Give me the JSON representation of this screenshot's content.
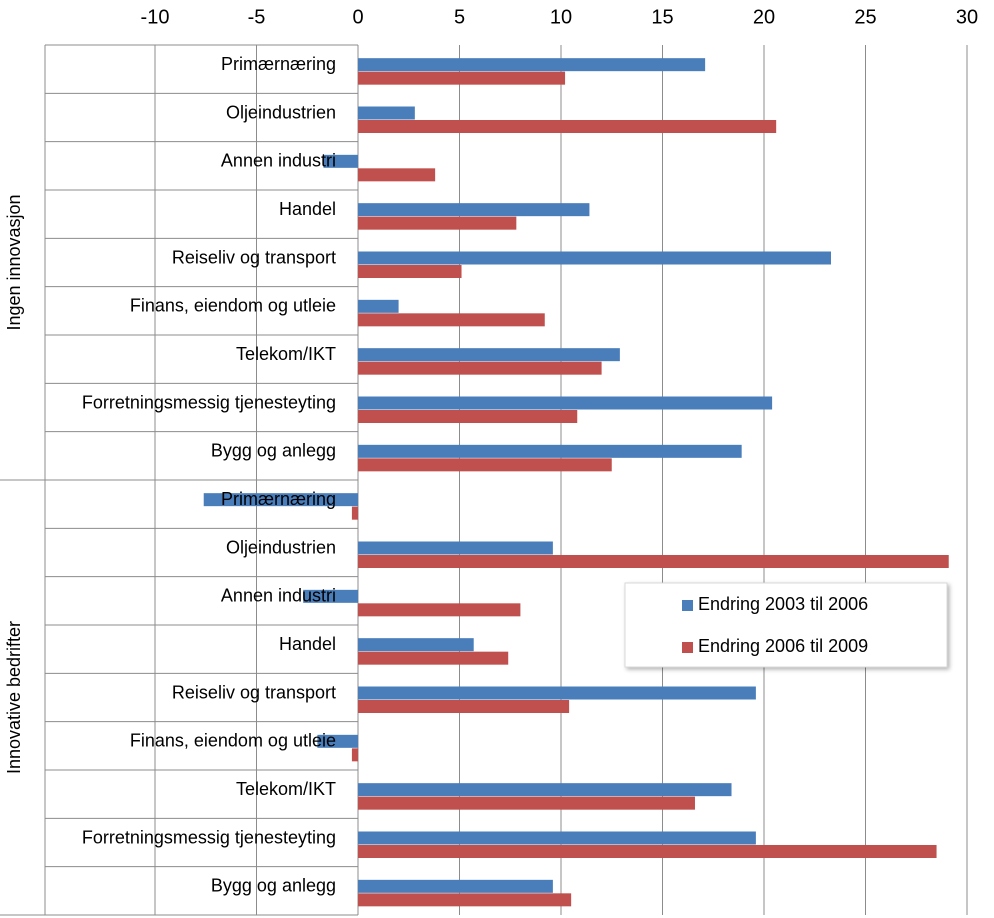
{
  "chart_data": {
    "type": "hbar",
    "groups": [
      {
        "label": "Ingen innovasjon",
        "categories": [
          "Primærnæring",
          "Oljeindustrien",
          "Annen industri",
          "Handel",
          "Reiseliv og transport",
          "Finans, eiendom og utleie",
          "Telekom/IKT",
          "Forretningsmessig tjenesteyting",
          "Bygg og anlegg"
        ]
      },
      {
        "label": "Innovative bedrifter",
        "categories": [
          "Primærnæring",
          "Oljeindustrien",
          "Annen industri",
          "Handel",
          "Reiseliv og transport",
          "Finans, eiendom og utleie",
          "Telekom/IKT",
          "Forretningsmessig tjenesteyting",
          "Bygg og anlegg"
        ]
      }
    ],
    "series": [
      {
        "name": "Endring 2003 til 2006",
        "color": "#4a7ebb",
        "values": [
          17.1,
          2.8,
          -1.7,
          11.4,
          23.3,
          2.0,
          12.9,
          20.4,
          18.9,
          -7.6,
          9.6,
          -2.7,
          5.7,
          19.6,
          -2.0,
          18.4,
          19.6,
          9.6
        ]
      },
      {
        "name": "Endring 2006 til 2009",
        "color": "#c0504d",
        "values": [
          10.2,
          20.6,
          3.8,
          7.8,
          5.1,
          9.2,
          12.0,
          10.8,
          12.5,
          -0.3,
          29.1,
          8.0,
          7.4,
          10.4,
          -0.3,
          16.6,
          28.5,
          10.5
        ]
      }
    ],
    "xlim": [
      -10,
      30
    ],
    "xticks": [
      -10,
      -5,
      0,
      5,
      10,
      15,
      20,
      25,
      30
    ],
    "grid": true
  }
}
